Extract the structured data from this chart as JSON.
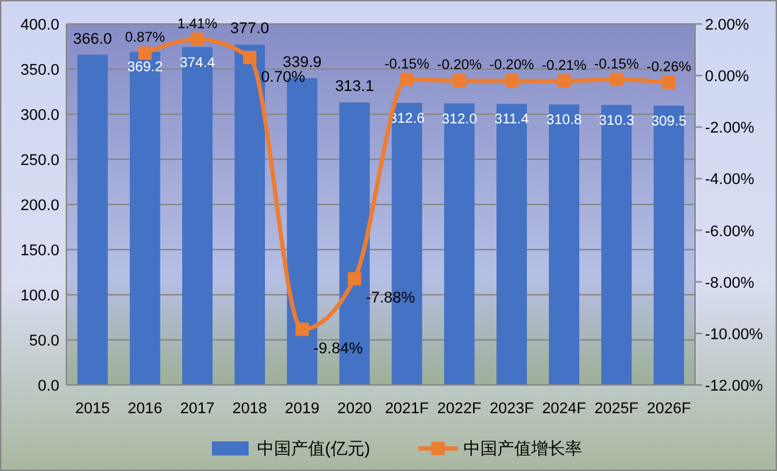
{
  "chart_data": {
    "type": "bar",
    "categories": [
      "2015",
      "2016",
      "2017",
      "2018",
      "2019",
      "2020",
      "2021F",
      "2022F",
      "2023F",
      "2024F",
      "2025F",
      "2026F"
    ],
    "series": [
      {
        "name": "中国产值(亿元)",
        "color": "#4472c4",
        "values": [
          366.0,
          369.2,
          374.4,
          377.0,
          339.9,
          313.1,
          312.6,
          312.0,
          311.4,
          310.8,
          310.3,
          309.5
        ],
        "value_labels": [
          "366.0",
          "369.2",
          "374.4",
          "377.0",
          "339.9",
          "313.1",
          "312.6",
          "312.0",
          "311.4",
          "310.8",
          "310.3",
          "309.5"
        ]
      },
      {
        "name": "中国产值增长率",
        "type": "line",
        "axis": "y2",
        "color": "#ed7d31",
        "marker": "square",
        "values": [
          null,
          0.87,
          1.41,
          0.7,
          -9.84,
          -7.88,
          -0.15,
          -0.2,
          -0.2,
          -0.21,
          -0.15,
          -0.26
        ],
        "value_labels": [
          null,
          "0.87%",
          "1.41%",
          "0.70%",
          "-9.84%",
          "-7.88%",
          "-0.15%",
          "-0.20%",
          "-0.20%",
          "-0.21%",
          "-0.15%",
          "-0.26%"
        ]
      }
    ],
    "ylim": [
      0,
      400
    ],
    "yticks": [
      {
        "value": 0,
        "label": "0.0"
      },
      {
        "value": 50,
        "label": "50.0"
      },
      {
        "value": 100,
        "label": "100.0"
      },
      {
        "value": 150,
        "label": "150.0"
      },
      {
        "value": 200,
        "label": "200.0"
      },
      {
        "value": 250,
        "label": "250.0"
      },
      {
        "value": 300,
        "label": "300.0"
      },
      {
        "value": 350,
        "label": "350.0"
      },
      {
        "value": 400,
        "label": "400.0"
      }
    ],
    "y2lim": [
      -12,
      2
    ],
    "y2ticks": [
      {
        "value": -12,
        "label": "-12.00%"
      },
      {
        "value": -10,
        "label": "-10.00%"
      },
      {
        "value": -8,
        "label": "-8.00%"
      },
      {
        "value": -6,
        "label": "-6.00%"
      },
      {
        "value": -4,
        "label": "-4.00%"
      },
      {
        "value": -2,
        "label": "-2.00%"
      },
      {
        "value": 0,
        "label": "0.00%"
      },
      {
        "value": 2,
        "label": "2.00%"
      }
    ],
    "grid": "y",
    "legend": "bottom"
  }
}
